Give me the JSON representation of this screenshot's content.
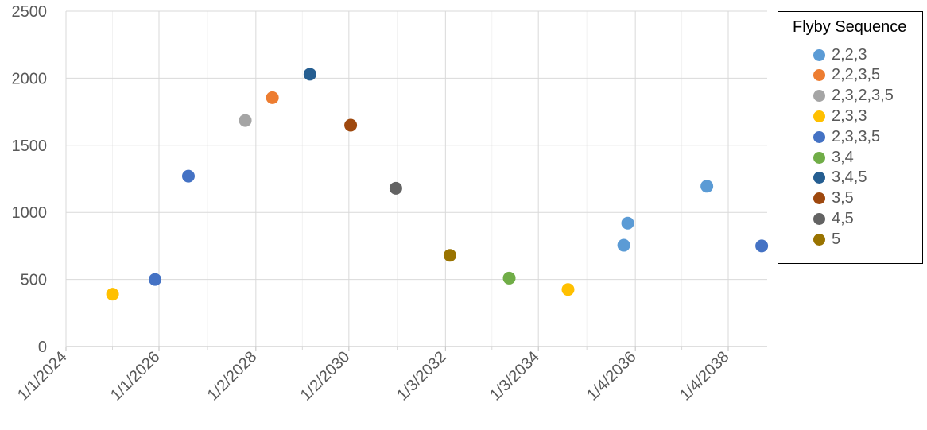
{
  "chart_data": {
    "type": "scatter",
    "title": "",
    "xlabel": "",
    "ylabel": "",
    "ylim": [
      0,
      2500
    ],
    "y_ticks": [
      "0",
      "500",
      "1000",
      "1500",
      "2000",
      "2500"
    ],
    "x_axis": {
      "type": "date",
      "range": [
        "2024-01-01",
        "2039-02-01"
      ],
      "tick_labels": [
        "1/1/2024",
        "1/1/2026",
        "1/2/2028",
        "1/2/2030",
        "1/3/2032",
        "1/3/2034",
        "1/4/2036",
        "1/4/2038"
      ],
      "tick_dates": [
        "2024-01-01",
        "2026-01-01",
        "2028-02-01",
        "2030-02-01",
        "2032-03-01",
        "2034-03-01",
        "2036-04-01",
        "2038-04-01"
      ],
      "minor_gridlines": true
    },
    "grid": true,
    "legend": {
      "title": "Flyby Sequence",
      "position": "right"
    },
    "series": [
      {
        "name": "2,2,3",
        "color": "#5B9BD5",
        "points": [
          [
            "2036-01-01",
            755
          ],
          [
            "2036-02-01",
            920
          ],
          [
            "2037-10-15",
            1195
          ]
        ]
      },
      {
        "name": "2,2,3,5",
        "color": "#ED7D31",
        "points": [
          [
            "2028-06-10",
            1855
          ]
        ]
      },
      {
        "name": "2,3,2,3,5",
        "color": "#A5A5A5",
        "points": [
          [
            "2027-11-10",
            1685
          ]
        ]
      },
      {
        "name": "2,3,3",
        "color": "#FFC000",
        "points": [
          [
            "2025-01-01",
            390
          ],
          [
            "2034-10-20",
            425
          ]
        ]
      },
      {
        "name": "2,3,3,5",
        "color": "#4472C4",
        "points": [
          [
            "2025-12-01",
            500
          ],
          [
            "2026-08-20",
            1270
          ],
          [
            "2038-12-20",
            750
          ]
        ]
      },
      {
        "name": "3,4",
        "color": "#70AD47",
        "points": [
          [
            "2033-07-15",
            510
          ]
        ]
      },
      {
        "name": "3,4,5",
        "color": "#255E91",
        "points": [
          [
            "2029-04-01",
            2030
          ]
        ]
      },
      {
        "name": "3,5",
        "color": "#9E480E",
        "points": [
          [
            "2030-02-15",
            1650
          ]
        ]
      },
      {
        "name": "4,5",
        "color": "#636363",
        "points": [
          [
            "2031-02-05",
            1180
          ]
        ]
      },
      {
        "name": "5",
        "color": "#997300",
        "points": [
          [
            "2032-04-05",
            680
          ]
        ]
      }
    ]
  }
}
